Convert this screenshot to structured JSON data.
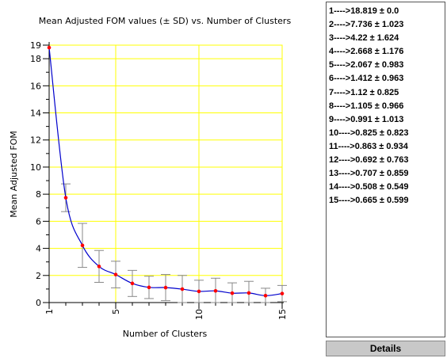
{
  "chart_data": {
    "type": "line",
    "title": "Mean Adjusted FOM values (± SD)  vs.  Number of Clusters",
    "xlabel": "Number of Clusters",
    "ylabel": "Mean Adjusted FOM",
    "xlim": [
      1,
      15
    ],
    "ylim": [
      0,
      19
    ],
    "x_ticks": [
      1,
      5,
      10,
      15
    ],
    "y_ticks": [
      0,
      2,
      4,
      6,
      8,
      10,
      12,
      14,
      16,
      18,
      19
    ],
    "grid": true,
    "x": [
      1,
      2,
      3,
      4,
      5,
      6,
      7,
      8,
      9,
      10,
      11,
      12,
      13,
      14,
      15
    ],
    "series": [
      {
        "values": [
          18.819,
          7.736,
          4.22,
          2.668,
          2.067,
          1.412,
          1.12,
          1.105,
          0.991,
          0.825,
          0.863,
          0.692,
          0.707,
          0.508,
          0.665
        ],
        "sd": [
          0.0,
          1.023,
          1.624,
          1.176,
          0.983,
          0.963,
          0.825,
          0.966,
          1.013,
          0.823,
          0.934,
          0.763,
          0.859,
          0.549,
          0.599
        ]
      }
    ],
    "colors": {
      "line": "#0000cc",
      "marker": "#ff0000",
      "grid": "#ffff00",
      "errorbar": "#888888"
    }
  },
  "results": [
    "1---->18.819 ± 0.0",
    "2---->7.736 ± 1.023",
    "3---->4.22 ± 1.624",
    "4---->2.668 ± 1.176",
    "5---->2.067 ± 0.983",
    "6---->1.412 ± 0.963",
    "7---->1.12 ± 0.825",
    "8---->1.105 ± 0.966",
    "9---->0.991 ± 1.013",
    "10---->0.825 ± 0.823",
    "11---->0.863 ± 0.934",
    "12---->0.692 ± 0.763",
    "13---->0.707 ± 0.859",
    "14---->0.508 ± 0.549",
    "15---->0.665 ± 0.599"
  ],
  "details_label": "Details"
}
